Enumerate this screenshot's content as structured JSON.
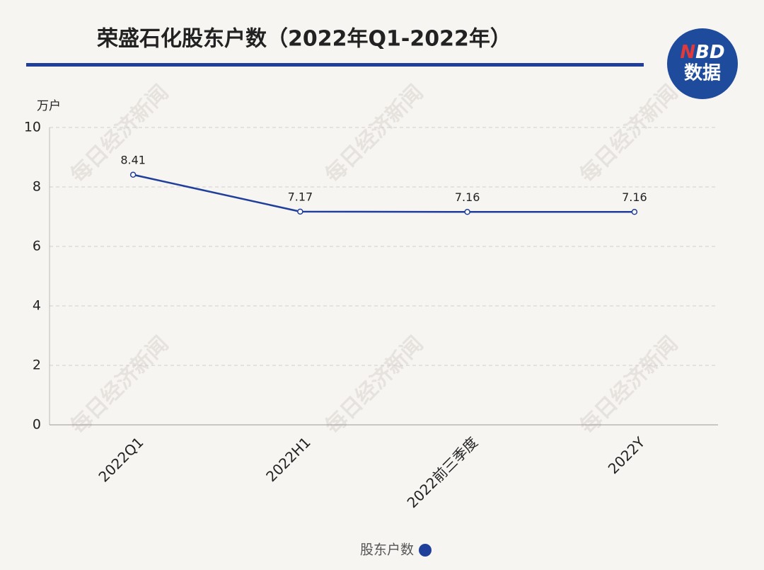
{
  "chart_data": {
    "type": "line",
    "title": "荣盛石化股东户数（2022年Q1-2022年）",
    "y_unit": "万户",
    "logo": {
      "mark": "N",
      "rest": "BD",
      "label": "数据"
    },
    "watermark": "每日经济新闻",
    "categories": [
      "2022Q1",
      "2022H1",
      "2022前三季度",
      "2022Y"
    ],
    "series": [
      {
        "name": "股东户数",
        "color": "#1f3f9a",
        "values": [
          8.41,
          7.17,
          7.16,
          7.16
        ]
      }
    ],
    "ylim": [
      0,
      10
    ],
    "yticks": [
      0,
      2,
      4,
      6,
      8,
      10
    ],
    "grid": true,
    "legend": "bottom"
  }
}
